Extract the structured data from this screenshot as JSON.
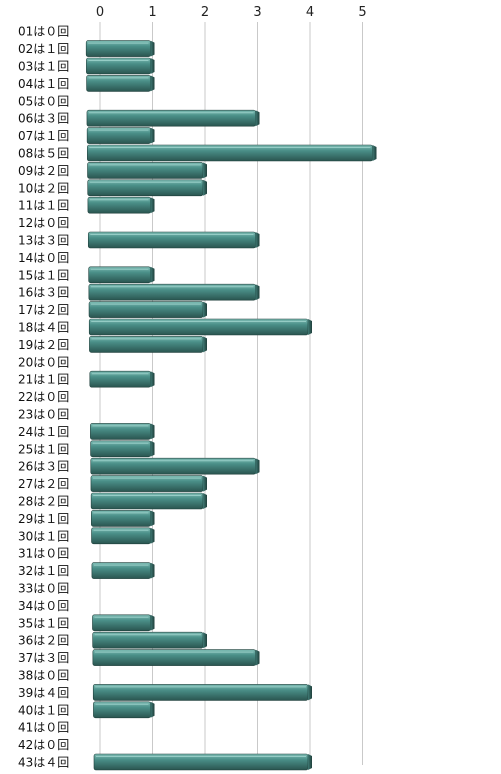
{
  "chart_data": {
    "type": "bar",
    "orientation": "horizontal",
    "categories": [
      "01は０回",
      "02は１回",
      "03は１回",
      "04は１回",
      "05は０回",
      "06は３回",
      "07は１回",
      "08は５回",
      "09は２回",
      "10は２回",
      "11は１回",
      "12は０回",
      "13は３回",
      "14は０回",
      "15は１回",
      "16は３回",
      "17は２回",
      "18は４回",
      "19は２回",
      "20は０回",
      "21は１回",
      "22は０回",
      "23は０回",
      "24は１回",
      "25は１回",
      "26は３回",
      "27は２回",
      "28は２回",
      "29は１回",
      "30は１回",
      "31は０回",
      "32は１回",
      "33は０回",
      "34は０回",
      "35は１回",
      "36は２回",
      "37は３回",
      "38は０回",
      "39は４回",
      "40は１回",
      "41は０回",
      "42は０回",
      "43は４回"
    ],
    "values": [
      0,
      1,
      1,
      1,
      0,
      3,
      1,
      5,
      2,
      2,
      1,
      0,
      3,
      0,
      1,
      3,
      2,
      4,
      2,
      0,
      1,
      0,
      0,
      1,
      1,
      3,
      2,
      2,
      1,
      1,
      0,
      1,
      0,
      0,
      1,
      2,
      3,
      0,
      4,
      1,
      0,
      0,
      4
    ],
    "xticks": [
      "0",
      "1",
      "2",
      "3",
      "4",
      "5"
    ],
    "xlim": [
      0,
      5
    ],
    "title": "",
    "xlabel": "",
    "ylabel": "",
    "grid": true,
    "bar_color": "#4a8f88",
    "bar_color_dark": "#2e5f59"
  }
}
